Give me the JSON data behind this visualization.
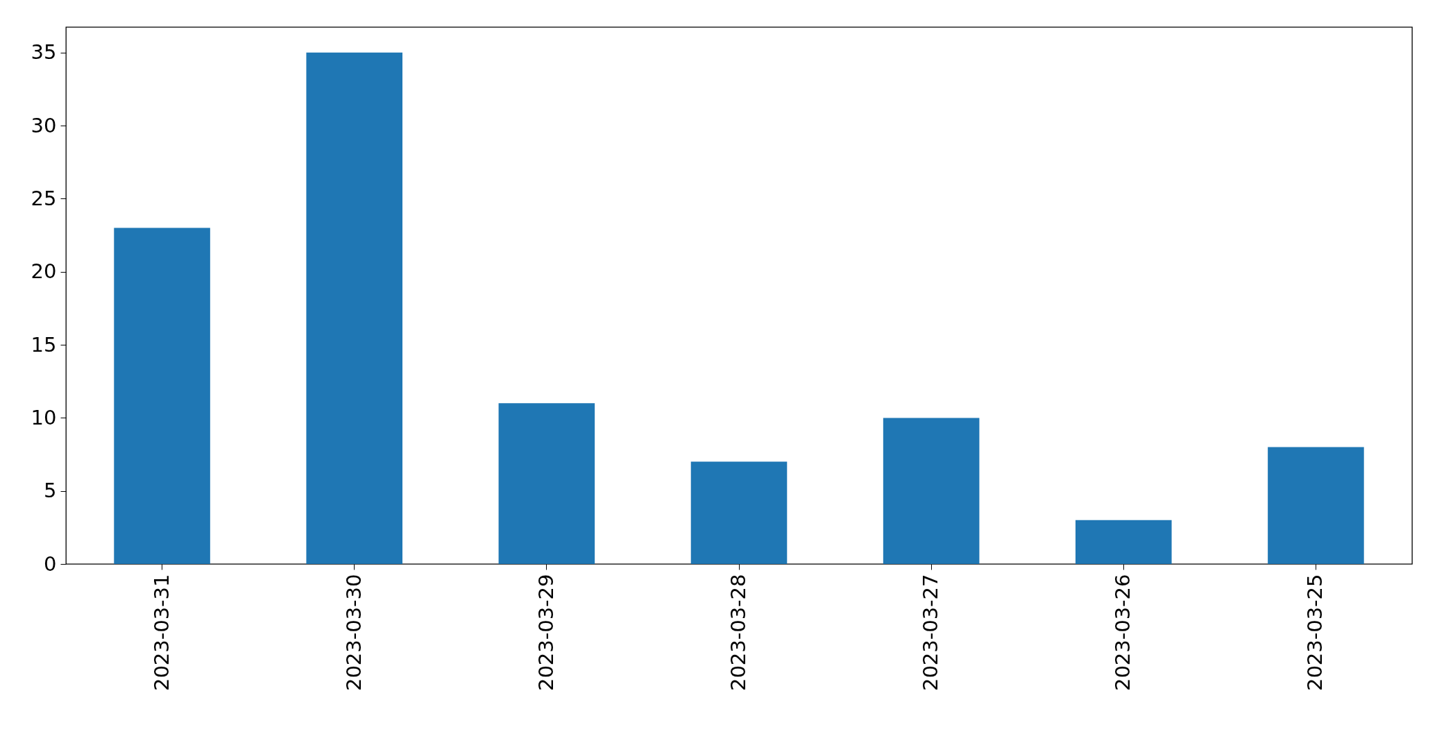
{
  "chart_data": {
    "type": "bar",
    "categories": [
      "2023-03-31",
      "2023-03-30",
      "2023-03-29",
      "2023-03-28",
      "2023-03-27",
      "2023-03-26",
      "2023-03-25"
    ],
    "values": [
      23,
      35,
      11,
      7,
      10,
      3,
      8
    ],
    "color": "#1f77b4",
    "ylim": [
      0,
      36.75
    ],
    "yticks": [
      0,
      5,
      10,
      15,
      20,
      25,
      30,
      35
    ]
  }
}
